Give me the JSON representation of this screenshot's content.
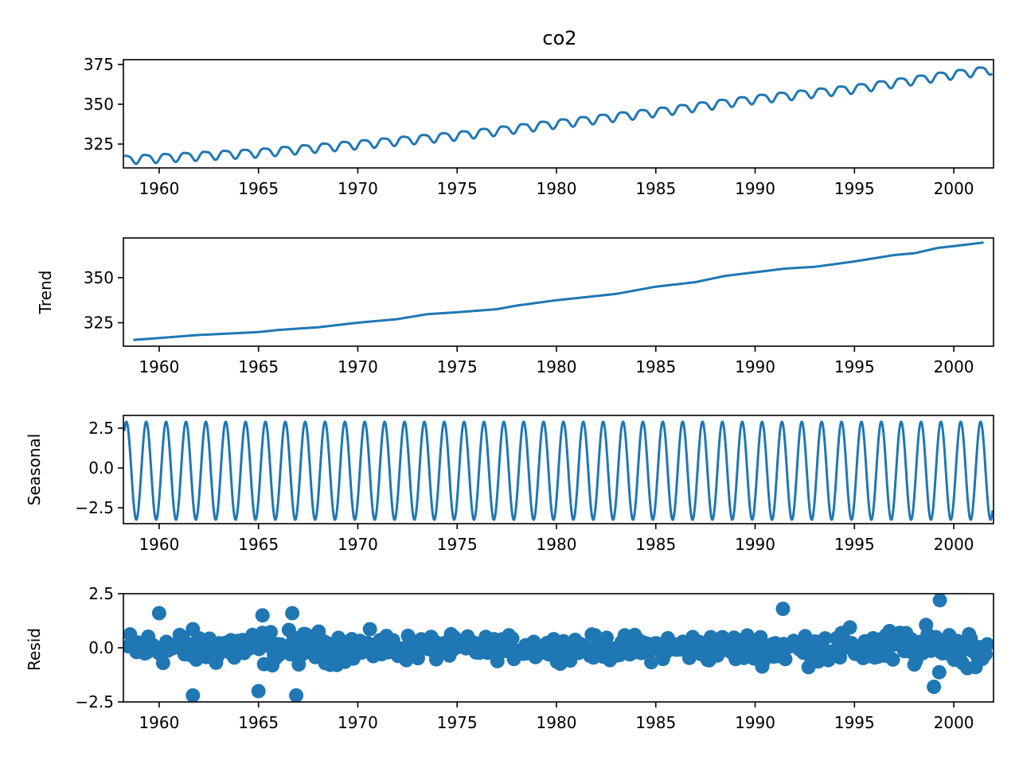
{
  "chart_data": [
    {
      "type": "line",
      "panel": "observed",
      "title": "co2",
      "ylabel": "",
      "xlim": [
        1958.2,
        2002.0
      ],
      "ylim": [
        310,
        378
      ],
      "xticks": [
        1960,
        1965,
        1970,
        1975,
        1980,
        1985,
        1990,
        1995,
        2000
      ],
      "yticks": [
        325,
        350,
        375
      ],
      "ytick_labels": [
        "325",
        "350",
        "375"
      ],
      "color": "#1f77b4",
      "series": [
        {
          "x_start": 1958.25,
          "x_end": 2001.95,
          "step": 0.0833,
          "trend_points": [
            [
              1958.25,
              315.5
            ],
            [
              1960,
              316.5
            ],
            [
              1965,
              319.8
            ],
            [
              1970,
              325.0
            ],
            [
              1975,
              330.5
            ],
            [
              1980,
              338.0
            ],
            [
              1985,
              345.3
            ],
            [
              1990,
              353.5
            ],
            [
              1995,
              360.0
            ],
            [
              2000,
              369.0
            ],
            [
              2001.95,
              372.0
            ]
          ],
          "seasonal_amplitude": 3.0
        }
      ]
    },
    {
      "type": "line",
      "panel": "trend",
      "title": "",
      "ylabel": "Trend",
      "xlim": [
        1958.2,
        2002.0
      ],
      "ylim": [
        312,
        372
      ],
      "xticks": [
        1960,
        1965,
        1970,
        1975,
        1980,
        1985,
        1990,
        1995,
        2000
      ],
      "yticks": [
        325,
        350
      ],
      "ytick_labels": [
        "325",
        "350"
      ],
      "color": "#1f77b4",
      "series": [
        {
          "points": [
            [
              1958.7,
              315.5
            ],
            [
              1960,
              316.5
            ],
            [
              1962,
              318.2
            ],
            [
              1965,
              319.8
            ],
            [
              1966,
              321.0
            ],
            [
              1968,
              322.5
            ],
            [
              1970,
              325.0
            ],
            [
              1972,
              327.0
            ],
            [
              1973.5,
              329.8
            ],
            [
              1975,
              330.8
            ],
            [
              1977,
              332.5
            ],
            [
              1978,
              334.5
            ],
            [
              1980,
              337.5
            ],
            [
              1983,
              341.0
            ],
            [
              1985,
              345.0
            ],
            [
              1987,
              347.5
            ],
            [
              1988.5,
              351.0
            ],
            [
              1990,
              353.0
            ],
            [
              1991.5,
              355.0
            ],
            [
              1993,
              356.0
            ],
            [
              1995,
              359.0
            ],
            [
              1997,
              362.5
            ],
            [
              1998,
              363.5
            ],
            [
              1999.2,
              366.5
            ],
            [
              2000,
              367.5
            ],
            [
              2001.5,
              369.5
            ]
          ]
        }
      ]
    },
    {
      "type": "line",
      "panel": "seasonal",
      "title": "",
      "ylabel": "Seasonal",
      "xlim": [
        1958.2,
        2002.0
      ],
      "ylim": [
        -3.5,
        3.3
      ],
      "xticks": [
        1960,
        1965,
        1970,
        1975,
        1980,
        1985,
        1990,
        1995,
        2000
      ],
      "yticks": [
        -2.5,
        0.0,
        2.5
      ],
      "ytick_labels": [
        "−2.5",
        "0.0",
        "2.5"
      ],
      "color": "#1f77b4",
      "series": [
        {
          "x_start": 1958.25,
          "x_end": 2001.95,
          "period_years": 1.0,
          "amplitude_max": 2.9,
          "amplitude_min": -3.25
        }
      ]
    },
    {
      "type": "scatter",
      "panel": "resid",
      "title": "",
      "ylabel": "Resid",
      "xlim": [
        1958.2,
        2002.0
      ],
      "ylim": [
        -2.5,
        2.5
      ],
      "xticks": [
        1960,
        1965,
        1970,
        1975,
        1980,
        1985,
        1990,
        1995,
        2000
      ],
      "yticks": [
        -2.5,
        0.0,
        2.5
      ],
      "ytick_labels": [
        "−2.5",
        "0.0",
        "2.5"
      ],
      "color": "#1f77b4",
      "zero_line": true,
      "series": [
        {
          "x_start": 1958.45,
          "x_end": 2001.75,
          "step": 0.0833,
          "spread_points": [
            [
              1958.5,
              1.0
            ],
            [
              1965,
              1.1
            ],
            [
              1970,
              0.9
            ],
            [
              1975,
              0.7
            ],
            [
              1980,
              0.7
            ],
            [
              1985,
              0.8
            ],
            [
              1990,
              0.9
            ],
            [
              1995,
              1.1
            ],
            [
              2000,
              1.2
            ],
            [
              2001.75,
              1.2
            ]
          ],
          "highlights": [
            [
              1960.0,
              1.6
            ],
            [
              1961.7,
              -2.2
            ],
            [
              1965.0,
              -2.0
            ],
            [
              1965.2,
              1.5
            ],
            [
              1966.7,
              1.6
            ],
            [
              1991.4,
              1.8
            ],
            [
              1999.3,
              2.2
            ],
            [
              1999.0,
              -1.8
            ],
            [
              1966.9,
              -2.2
            ]
          ]
        }
      ]
    }
  ]
}
